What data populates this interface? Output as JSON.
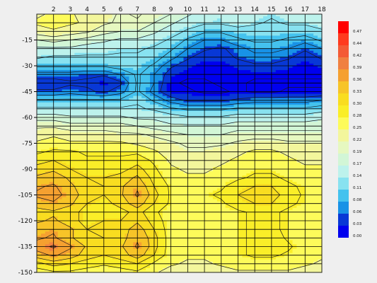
{
  "chart_data": {
    "type": "heatmap",
    "title": "",
    "xlabel": "",
    "ylabel": "",
    "x": [
      1,
      2,
      3,
      4,
      5,
      6,
      7,
      8,
      9,
      10,
      11,
      12,
      13,
      14,
      15,
      16,
      17,
      18
    ],
    "x_tick_labels": [
      "2",
      "3",
      "4",
      "5",
      "6",
      "7",
      "8",
      "9",
      "10",
      "11",
      "12",
      "13",
      "14",
      "15",
      "16",
      "17",
      "18"
    ],
    "y": [
      0,
      -5,
      -10,
      -15,
      -20,
      -25,
      -30,
      -35,
      -40,
      -45,
      -50,
      -55,
      -60,
      -65,
      -70,
      -75,
      -80,
      -85,
      -90,
      -95,
      -100,
      -105,
      -110,
      -115,
      -120,
      -125,
      -130,
      -135,
      -140,
      -145,
      -150
    ],
    "y_tick_labels": [
      "-15",
      "-30",
      "-45",
      "-60",
      "-75",
      "-90",
      "-105",
      "-120",
      "-135",
      "-150"
    ],
    "xlim": [
      1,
      18
    ],
    "ylim": [
      -150,
      0
    ],
    "grid": true,
    "contours": true,
    "colorbar": {
      "placement": "right",
      "labels": [
        "0.47",
        "0.44",
        "0.42",
        "0.39",
        "0.36",
        "0.33",
        "0.30",
        "0.28",
        "0.25",
        "0.22",
        "0.19",
        "0.17",
        "0.14",
        "0.11",
        "0.08",
        "0.06",
        "0.03",
        "0.00"
      ],
      "colors": [
        "#ff0000",
        "#ff3a1e",
        "#f45a35",
        "#f08040",
        "#f5a030",
        "#f7c428",
        "#f9dd20",
        "#faee28",
        "#fdfb5a",
        "#f3f69c",
        "#e6f8c0",
        "#d2f6d6",
        "#bdf2ec",
        "#88e2f0",
        "#44c2ee",
        "#1892e6",
        "#0838d6",
        "#0000ee"
      ]
    },
    "values": [
      [
        0.23,
        0.24,
        0.24,
        0.22,
        0.22,
        0.2,
        0.21,
        0.19,
        0.18,
        0.16,
        0.14,
        0.13,
        0.15,
        0.14,
        0.13,
        0.14,
        0.14,
        0.15
      ],
      [
        0.24,
        0.25,
        0.24,
        0.23,
        0.21,
        0.2,
        0.2,
        0.18,
        0.16,
        0.14,
        0.13,
        0.13,
        0.14,
        0.13,
        0.12,
        0.13,
        0.13,
        0.14
      ],
      [
        0.22,
        0.23,
        0.22,
        0.21,
        0.19,
        0.18,
        0.18,
        0.16,
        0.14,
        0.12,
        0.1,
        0.1,
        0.11,
        0.11,
        0.11,
        0.11,
        0.11,
        0.12
      ],
      [
        0.18,
        0.19,
        0.18,
        0.17,
        0.16,
        0.15,
        0.15,
        0.14,
        0.12,
        0.09,
        0.07,
        0.07,
        0.09,
        0.1,
        0.1,
        0.09,
        0.08,
        0.1
      ],
      [
        0.15,
        0.15,
        0.15,
        0.14,
        0.14,
        0.13,
        0.13,
        0.12,
        0.1,
        0.07,
        0.05,
        0.04,
        0.06,
        0.08,
        0.08,
        0.07,
        0.05,
        0.07
      ],
      [
        0.13,
        0.12,
        0.12,
        0.12,
        0.12,
        0.12,
        0.12,
        0.11,
        0.08,
        0.05,
        0.03,
        0.03,
        0.05,
        0.06,
        0.06,
        0.05,
        0.03,
        0.05
      ],
      [
        0.1,
        0.1,
        0.1,
        0.1,
        0.1,
        0.11,
        0.11,
        0.09,
        0.05,
        0.03,
        0.02,
        0.02,
        0.03,
        0.04,
        0.04,
        0.03,
        0.02,
        0.03
      ],
      [
        0.06,
        0.06,
        0.06,
        0.05,
        0.05,
        0.07,
        0.1,
        0.07,
        0.03,
        0.02,
        0.02,
        0.02,
        0.02,
        0.02,
        0.02,
        0.02,
        0.02,
        0.02
      ],
      [
        0.03,
        0.03,
        0.04,
        0.04,
        0.02,
        0.04,
        0.1,
        0.07,
        0.02,
        0.01,
        0.01,
        0.02,
        0.02,
        0.01,
        0.01,
        0.01,
        0.01,
        0.01
      ],
      [
        0.05,
        0.05,
        0.06,
        0.05,
        0.04,
        0.06,
        0.1,
        0.06,
        0.02,
        0.02,
        0.01,
        0.01,
        0.02,
        0.01,
        0.01,
        0.02,
        0.02,
        0.02
      ],
      [
        0.1,
        0.1,
        0.1,
        0.1,
        0.1,
        0.1,
        0.12,
        0.09,
        0.06,
        0.04,
        0.04,
        0.04,
        0.05,
        0.06,
        0.06,
        0.06,
        0.06,
        0.07
      ],
      [
        0.13,
        0.13,
        0.13,
        0.13,
        0.13,
        0.13,
        0.13,
        0.12,
        0.1,
        0.09,
        0.09,
        0.09,
        0.1,
        0.1,
        0.1,
        0.1,
        0.1,
        0.11
      ],
      [
        0.17,
        0.17,
        0.16,
        0.16,
        0.16,
        0.16,
        0.15,
        0.15,
        0.14,
        0.13,
        0.13,
        0.13,
        0.14,
        0.14,
        0.14,
        0.14,
        0.14,
        0.15
      ],
      [
        0.2,
        0.2,
        0.19,
        0.19,
        0.19,
        0.19,
        0.18,
        0.17,
        0.16,
        0.16,
        0.16,
        0.16,
        0.17,
        0.17,
        0.17,
        0.17,
        0.17,
        0.17
      ],
      [
        0.22,
        0.23,
        0.22,
        0.22,
        0.22,
        0.21,
        0.21,
        0.2,
        0.19,
        0.18,
        0.18,
        0.18,
        0.19,
        0.19,
        0.19,
        0.19,
        0.19,
        0.19
      ],
      [
        0.24,
        0.25,
        0.24,
        0.24,
        0.24,
        0.24,
        0.23,
        0.22,
        0.21,
        0.2,
        0.2,
        0.2,
        0.21,
        0.22,
        0.22,
        0.21,
        0.21,
        0.21
      ],
      [
        0.26,
        0.27,
        0.27,
        0.26,
        0.26,
        0.26,
        0.26,
        0.24,
        0.22,
        0.21,
        0.21,
        0.22,
        0.23,
        0.24,
        0.24,
        0.23,
        0.22,
        0.22
      ],
      [
        0.28,
        0.29,
        0.28,
        0.27,
        0.27,
        0.27,
        0.28,
        0.26,
        0.23,
        0.22,
        0.22,
        0.23,
        0.24,
        0.25,
        0.25,
        0.24,
        0.23,
        0.23
      ],
      [
        0.3,
        0.31,
        0.29,
        0.28,
        0.28,
        0.28,
        0.3,
        0.27,
        0.24,
        0.23,
        0.23,
        0.24,
        0.25,
        0.26,
        0.26,
        0.25,
        0.24,
        0.24
      ],
      [
        0.32,
        0.33,
        0.31,
        0.29,
        0.29,
        0.3,
        0.32,
        0.28,
        0.25,
        0.24,
        0.24,
        0.25,
        0.26,
        0.27,
        0.27,
        0.26,
        0.25,
        0.24
      ],
      [
        0.34,
        0.35,
        0.32,
        0.3,
        0.29,
        0.31,
        0.34,
        0.29,
        0.26,
        0.25,
        0.25,
        0.26,
        0.28,
        0.29,
        0.29,
        0.27,
        0.26,
        0.25
      ],
      [
        0.35,
        0.36,
        0.33,
        0.3,
        0.29,
        0.31,
        0.35,
        0.3,
        0.26,
        0.25,
        0.26,
        0.27,
        0.29,
        0.3,
        0.3,
        0.28,
        0.26,
        0.25
      ],
      [
        0.33,
        0.34,
        0.32,
        0.29,
        0.28,
        0.3,
        0.33,
        0.29,
        0.26,
        0.25,
        0.25,
        0.26,
        0.28,
        0.29,
        0.29,
        0.27,
        0.26,
        0.25
      ],
      [
        0.3,
        0.31,
        0.3,
        0.28,
        0.27,
        0.28,
        0.3,
        0.27,
        0.25,
        0.24,
        0.24,
        0.25,
        0.26,
        0.27,
        0.27,
        0.26,
        0.25,
        0.24
      ],
      [
        0.31,
        0.32,
        0.3,
        0.28,
        0.29,
        0.29,
        0.31,
        0.28,
        0.25,
        0.24,
        0.25,
        0.25,
        0.26,
        0.27,
        0.27,
        0.26,
        0.25,
        0.24
      ],
      [
        0.33,
        0.34,
        0.32,
        0.29,
        0.3,
        0.3,
        0.33,
        0.29,
        0.25,
        0.24,
        0.25,
        0.25,
        0.26,
        0.27,
        0.27,
        0.26,
        0.25,
        0.24
      ],
      [
        0.34,
        0.35,
        0.32,
        0.29,
        0.29,
        0.3,
        0.34,
        0.3,
        0.25,
        0.24,
        0.25,
        0.25,
        0.26,
        0.27,
        0.28,
        0.26,
        0.25,
        0.24
      ],
      [
        0.36,
        0.38,
        0.35,
        0.31,
        0.3,
        0.31,
        0.35,
        0.3,
        0.25,
        0.24,
        0.25,
        0.25,
        0.26,
        0.27,
        0.28,
        0.27,
        0.25,
        0.24
      ],
      [
        0.33,
        0.35,
        0.33,
        0.3,
        0.29,
        0.3,
        0.33,
        0.29,
        0.25,
        0.24,
        0.24,
        0.25,
        0.26,
        0.27,
        0.27,
        0.26,
        0.25,
        0.24
      ],
      [
        0.28,
        0.3,
        0.29,
        0.28,
        0.27,
        0.28,
        0.29,
        0.26,
        0.24,
        0.23,
        0.23,
        0.24,
        0.25,
        0.25,
        0.25,
        0.25,
        0.24,
        0.23
      ],
      [
        0.25,
        0.26,
        0.26,
        0.25,
        0.24,
        0.25,
        0.26,
        0.24,
        0.22,
        0.22,
        0.22,
        0.22,
        0.23,
        0.23,
        0.23,
        0.23,
        0.22,
        0.22
      ]
    ]
  }
}
